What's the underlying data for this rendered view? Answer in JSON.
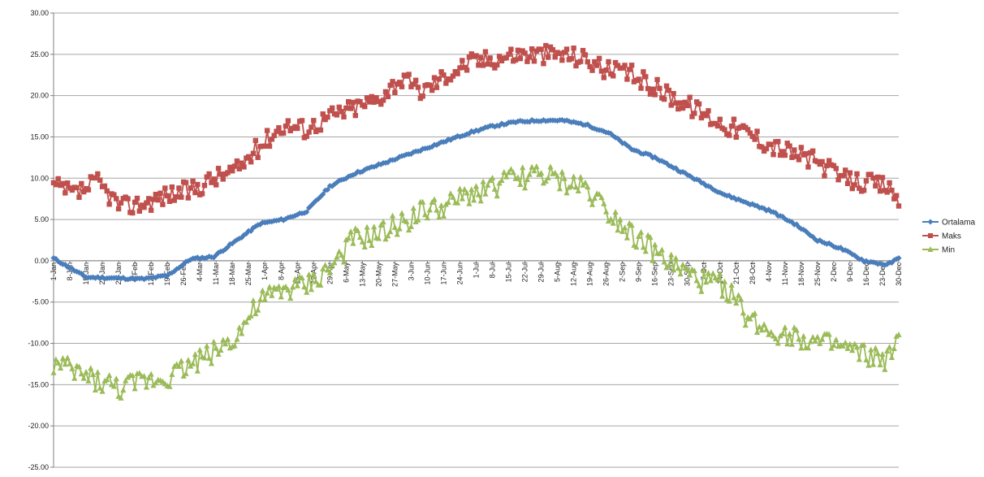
{
  "chart_data": {
    "type": "line",
    "title": "",
    "xlabel": "",
    "ylabel": "",
    "ylim": [
      -25,
      30
    ],
    "y_ticks": [
      "30.00",
      "25.00",
      "20.00",
      "15.00",
      "10.00",
      "5.00",
      "0.00",
      "-5.00",
      "-10.00",
      "-15.00",
      "-20.00",
      "-25.00"
    ],
    "grid": "horizontal",
    "legend_position": "right",
    "x_tick_labels": [
      "1-Jan",
      "8-Jan",
      "15-Jan",
      "22-Jan",
      "29-Jan",
      "5-Feb",
      "12-Feb",
      "19-Feb",
      "26-Feb",
      "4-Mar",
      "11-Mar",
      "18-Mar",
      "25-Mar",
      "1-Apr",
      "8-Apr",
      "15-Apr",
      "22-Apr",
      "29-Apr",
      "6-May",
      "13-May",
      "20-May",
      "27-May",
      "3-Jun",
      "10-Jun",
      "17-Jun",
      "24-Jun",
      "1-Jul",
      "8-Jul",
      "15-Jul",
      "22-Jul",
      "29-Jul",
      "5-Aug",
      "12-Aug",
      "19-Aug",
      "26-Aug",
      "2-Sep",
      "9-Sep",
      "16-Sep",
      "23-Sep",
      "30-Sep",
      "7-Oct",
      "14-Oct",
      "21-Oct",
      "28-Oct",
      "4-Nov",
      "11-Nov",
      "18-Nov",
      "25-Nov",
      "2-Dec",
      "9-Dec",
      "16-Dec",
      "23-Dec",
      "30-Dec"
    ],
    "days_in_year": 365,
    "series": [
      {
        "name": "Ortalama",
        "color": "#4a7ebb",
        "marker": "diamond",
        "anchor_days": [
          1,
          15,
          40,
          50,
          60,
          70,
          80,
          90,
          100,
          110,
          120,
          130,
          140,
          150,
          160,
          170,
          180,
          190,
          200,
          210,
          220,
          230,
          240,
          250,
          260,
          270,
          280,
          290,
          300,
          310,
          320,
          330,
          340,
          350,
          360,
          365
        ],
        "anchor_values": [
          0.3,
          -2.0,
          -2.2,
          -1.8,
          0.2,
          0.5,
          2.5,
          4.5,
          5.0,
          6.0,
          9.0,
          10.5,
          11.5,
          12.5,
          13.5,
          14.5,
          15.5,
          16.3,
          16.8,
          17.0,
          17.0,
          16.5,
          15.5,
          13.5,
          12.5,
          11.0,
          9.5,
          8.0,
          7.0,
          6.0,
          4.5,
          2.5,
          1.5,
          0.0,
          -0.5,
          0.3
        ]
      },
      {
        "name": "Maks",
        "color": "#c0504d",
        "marker": "square",
        "anchor_days": [
          1,
          10,
          20,
          30,
          40,
          50,
          60,
          70,
          80,
          90,
          100,
          110,
          120,
          130,
          140,
          150,
          160,
          170,
          180,
          190,
          200,
          210,
          220,
          230,
          240,
          250,
          260,
          270,
          280,
          290,
          300,
          310,
          320,
          330,
          340,
          350,
          360,
          365
        ],
        "anchor_values": [
          9.0,
          8.0,
          9.5,
          6.5,
          7.0,
          8.0,
          8.5,
          10.0,
          11.0,
          14.0,
          16.5,
          16.0,
          17.5,
          18.5,
          19.5,
          22.0,
          20.5,
          22.5,
          24.0,
          24.5,
          25.0,
          25.0,
          25.0,
          24.5,
          23.0,
          22.5,
          21.0,
          19.5,
          18.0,
          16.5,
          15.5,
          14.0,
          13.0,
          12.0,
          10.0,
          9.5,
          9.0,
          7.5
        ]
      },
      {
        "name": "Min",
        "color": "#9bbb59",
        "marker": "triangle",
        "anchor_days": [
          1,
          15,
          30,
          40,
          50,
          60,
          70,
          80,
          90,
          100,
          110,
          120,
          130,
          140,
          150,
          160,
          170,
          180,
          190,
          200,
          210,
          220,
          230,
          240,
          250,
          260,
          270,
          280,
          290,
          300,
          310,
          320,
          330,
          340,
          350,
          360,
          365
        ],
        "anchor_values": [
          -12.5,
          -14.0,
          -15.5,
          -14.5,
          -14.0,
          -12.5,
          -11.0,
          -9.0,
          -5.0,
          -3.5,
          -3.0,
          -1.0,
          2.5,
          3.0,
          4.5,
          6.0,
          6.5,
          8.0,
          9.0,
          10.0,
          10.5,
          9.5,
          9.0,
          6.0,
          3.5,
          1.0,
          -1.0,
          -2.5,
          -3.0,
          -7.0,
          -8.5,
          -9.0,
          -10.0,
          -10.5,
          -11.5,
          -12.0,
          -10.0
        ]
      }
    ]
  }
}
